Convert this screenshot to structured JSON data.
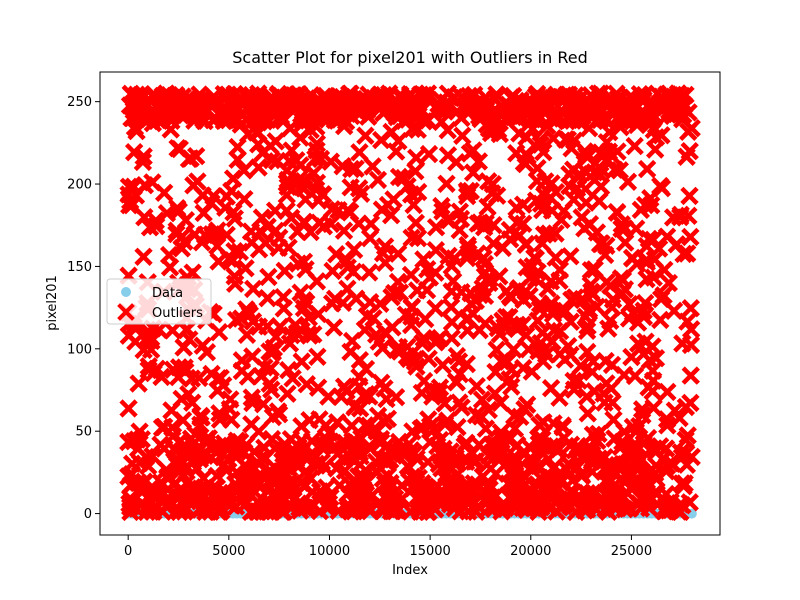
{
  "chart_data": {
    "type": "scatter",
    "title": "Scatter Plot for pixel201 with Outliers in Red",
    "xlabel": "Index",
    "ylabel": "pixel201",
    "xlim": [
      -1400,
      29400
    ],
    "ylim": [
      -13,
      268
    ],
    "x_ticks": [
      0,
      5000,
      10000,
      15000,
      20000,
      25000
    ],
    "y_ticks": [
      0,
      50,
      100,
      150,
      200,
      250
    ],
    "grid": false,
    "legend_position": "center-left",
    "series": [
      {
        "name": "Data",
        "marker": "circle",
        "color": "#87ceeb",
        "y_constant": 0,
        "x_range": [
          0,
          28000
        ],
        "note": "all non-outlier points at value 0"
      },
      {
        "name": "Outliers",
        "marker": "x",
        "color": "#ff0000",
        "x_range": [
          0,
          28000
        ],
        "y_range": [
          1,
          255
        ]
      }
    ]
  }
}
